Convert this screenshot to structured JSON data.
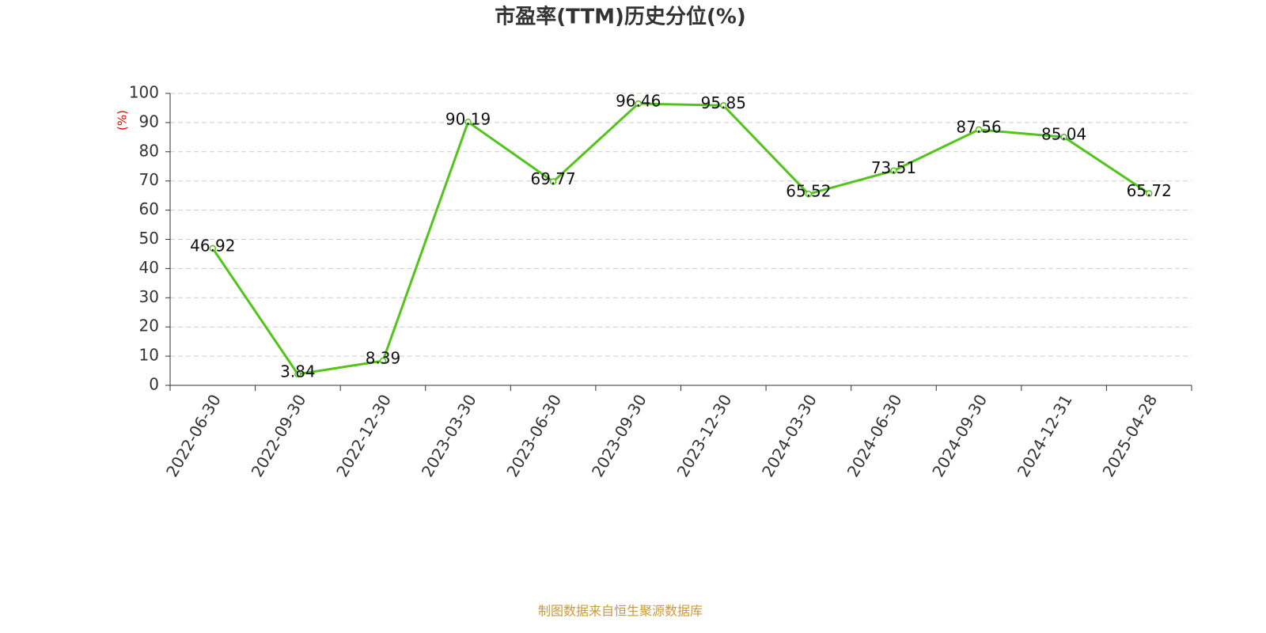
{
  "chart_data": {
    "type": "line",
    "title": "市盈率(TTM)历史分位(%)",
    "y_label": "(%)",
    "categories": [
      "2022-06-30",
      "2022-09-30",
      "2022-12-30",
      "2023-03-30",
      "2023-06-30",
      "2023-09-30",
      "2023-12-30",
      "2024-03-30",
      "2024-06-30",
      "2024-09-30",
      "2024-12-31",
      "2025-04-28"
    ],
    "values": [
      46.92,
      3.84,
      8.39,
      90.19,
      69.77,
      96.46,
      95.85,
      65.52,
      73.51,
      87.56,
      85.04,
      65.72
    ],
    "color": "#52c41a",
    "ylim": [
      0,
      100
    ],
    "yticks": [
      0,
      10,
      20,
      30,
      40,
      50,
      60,
      70,
      80,
      90,
      100
    ],
    "grid": true,
    "source": "制图数据来自恒生聚源数据库"
  }
}
